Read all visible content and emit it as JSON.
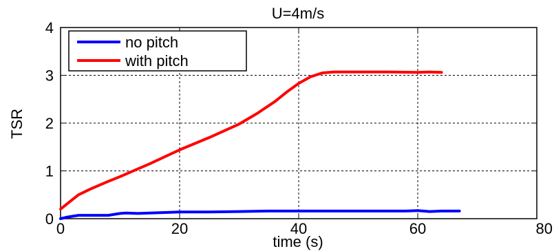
{
  "chart_data": {
    "type": "line",
    "title": "U=4m/s",
    "xlabel": "time (s)",
    "ylabel": "TSR",
    "xlim": [
      0,
      80
    ],
    "ylim": [
      0,
      4
    ],
    "x_ticks": [
      0,
      20,
      40,
      60,
      80
    ],
    "y_ticks": [
      0,
      1,
      2,
      3,
      4
    ],
    "grid": true,
    "legend": "top-left",
    "series": [
      {
        "name": "no pitch",
        "color": "#0000ff",
        "x": [
          0,
          1,
          2,
          3,
          5,
          8,
          10,
          11,
          13,
          15,
          20,
          25,
          30,
          35,
          40,
          45,
          50,
          55,
          58,
          60,
          62,
          64,
          67
        ],
        "y": [
          0.0,
          0.03,
          0.05,
          0.07,
          0.07,
          0.07,
          0.11,
          0.12,
          0.11,
          0.12,
          0.14,
          0.14,
          0.15,
          0.16,
          0.16,
          0.16,
          0.16,
          0.16,
          0.16,
          0.17,
          0.15,
          0.16,
          0.16
        ]
      },
      {
        "name": "with pitch",
        "color": "#ff0000",
        "x": [
          0,
          1,
          2,
          3,
          5,
          8,
          10,
          15,
          20,
          25,
          30,
          33,
          36,
          38,
          40,
          42,
          44,
          46,
          50,
          55,
          60,
          62,
          64
        ],
        "y": [
          0.2,
          0.3,
          0.4,
          0.5,
          0.62,
          0.78,
          0.88,
          1.15,
          1.44,
          1.7,
          1.98,
          2.2,
          2.45,
          2.65,
          2.83,
          2.97,
          3.05,
          3.07,
          3.07,
          3.07,
          3.06,
          3.07,
          3.06
        ]
      }
    ]
  }
}
